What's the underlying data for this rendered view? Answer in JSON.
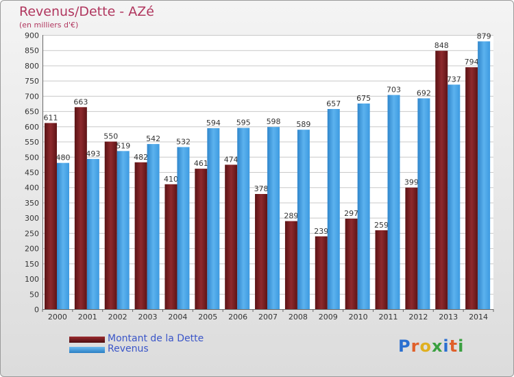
{
  "title": "Revenus/Dette - AZé",
  "subtitle": "(en milliers d'€)",
  "logo": "Proxiti",
  "colors": {
    "dette": "#7a1f22",
    "revenus": "#3e9be0",
    "title": "#b0365e",
    "legend_text": "#3a55c8"
  },
  "legend": [
    {
      "label": "Montant de la Dette",
      "color": "#7a1f22"
    },
    {
      "label": "Revenus",
      "color": "#3e9be0"
    }
  ],
  "chart_data": {
    "type": "bar",
    "title": "Revenus/Dette - AZé",
    "subtitle": "(en milliers d'€)",
    "categories": [
      "2000",
      "2001",
      "2002",
      "2003",
      "2004",
      "2005",
      "2006",
      "2007",
      "2008",
      "2009",
      "2010",
      "2011",
      "2012",
      "2013",
      "2014"
    ],
    "series": [
      {
        "name": "Montant de la Dette",
        "values": [
          611,
          663,
          550,
          482,
          410,
          461,
          474,
          378,
          289,
          239,
          297,
          259,
          399,
          848,
          794
        ]
      },
      {
        "name": "Revenus",
        "values": [
          480,
          493,
          519,
          542,
          532,
          594,
          595,
          598,
          589,
          657,
          675,
          703,
          692,
          737,
          879
        ]
      }
    ],
    "ylim": [
      0,
      900
    ],
    "yticks": [
      0,
      50,
      100,
      150,
      200,
      250,
      300,
      350,
      400,
      450,
      500,
      550,
      600,
      650,
      700,
      750,
      800,
      850,
      900
    ],
    "grid": true,
    "legend_position": "bottom-left"
  }
}
